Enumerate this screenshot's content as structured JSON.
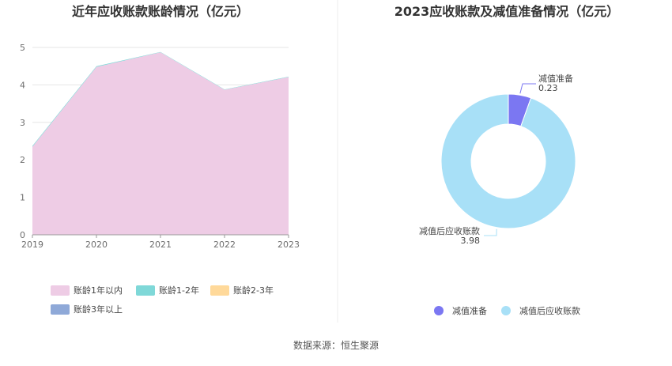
{
  "colors": {
    "pink": "#eeccE5",
    "teal": "#7fd8d8",
    "orange": "#ffd99a",
    "blue": "#8fa9d8",
    "reserve": "#7b77f2",
    "net": "#a8e0f7",
    "grid": "#e6e6e6"
  },
  "source": "数据来源：恒生聚源",
  "chart_data": [
    {
      "type": "area",
      "title": "近年应收账款账龄情况（亿元）",
      "x": [
        "2019",
        "2020",
        "2021",
        "2022",
        "2023"
      ],
      "ylim": [
        0,
        5
      ],
      "yticks": [
        "0",
        "1",
        "2",
        "3",
        "4",
        "5"
      ],
      "grid": true,
      "legend_position": "bottom",
      "series": [
        {
          "name": "账龄1年以内",
          "values": [
            2.35,
            4.48,
            4.87,
            3.87,
            4.21
          ],
          "color": "#eeccE5"
        },
        {
          "name": "账龄1-2年",
          "values": [
            0.02,
            0.02,
            0.01,
            0.01,
            0.01
          ],
          "color": "#7fd8d8"
        },
        {
          "name": "账龄2-3年",
          "values": [
            0,
            0,
            0,
            0,
            0
          ],
          "color": "#ffd99a"
        },
        {
          "name": "账龄3年以上",
          "values": [
            0,
            0,
            0,
            0,
            0
          ],
          "color": "#8fa9d8"
        }
      ]
    },
    {
      "type": "pie",
      "title": "2023应收账款及减值准备情况（亿元）",
      "donut": true,
      "legend_position": "bottom",
      "slices": [
        {
          "name": "减值准备",
          "value": 0.23,
          "label": "0.23",
          "color": "#7b77f2"
        },
        {
          "name": "减值后应收账款",
          "value": 3.98,
          "label": "3.98",
          "color": "#a8e0f7"
        }
      ]
    }
  ]
}
